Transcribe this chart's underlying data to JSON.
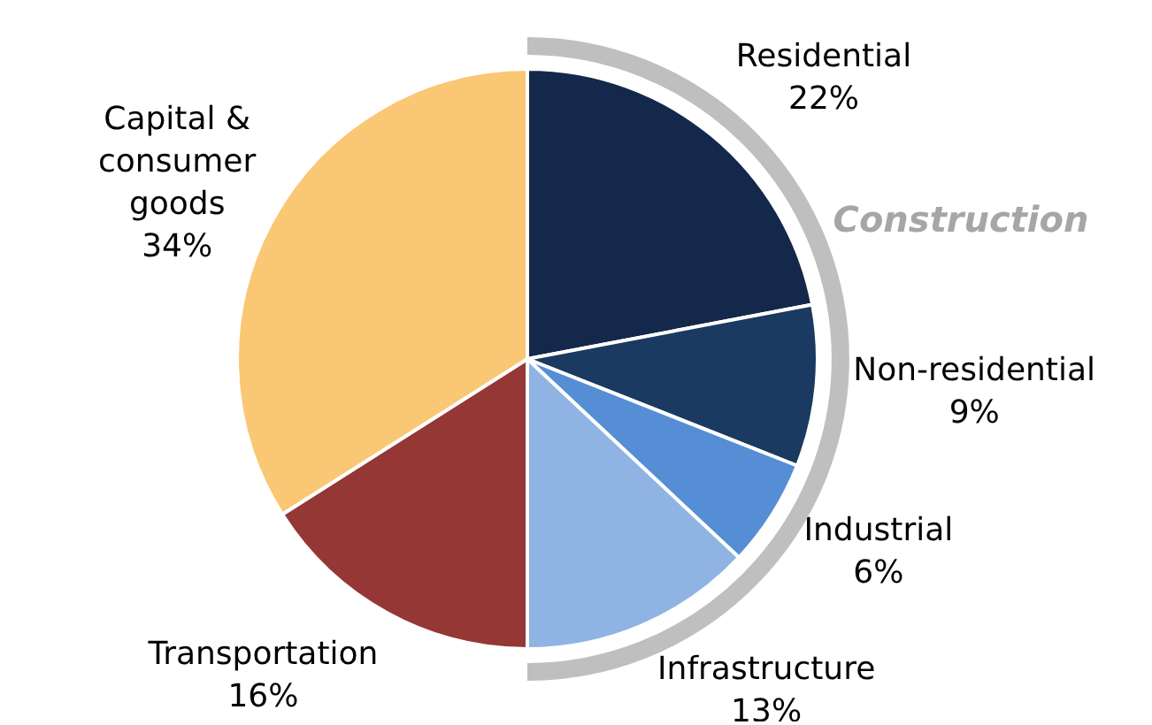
{
  "chart_data": {
    "type": "pie",
    "categories": [
      "Residential",
      "Non-residential",
      "Industrial",
      "Infrastructure",
      "Transportation",
      "Capital & consumer goods"
    ],
    "values": [
      22,
      9,
      6,
      13,
      16,
      34
    ],
    "value_labels": [
      "22%",
      "9%",
      "6%",
      "13%",
      "16%",
      "34%"
    ],
    "colors": [
      "#13284a",
      "#1b3a62",
      "#558ed5",
      "#8fb4e3",
      "#953735",
      "#fac775"
    ],
    "annotations": [
      "Construction"
    ],
    "legend": false
  }
}
